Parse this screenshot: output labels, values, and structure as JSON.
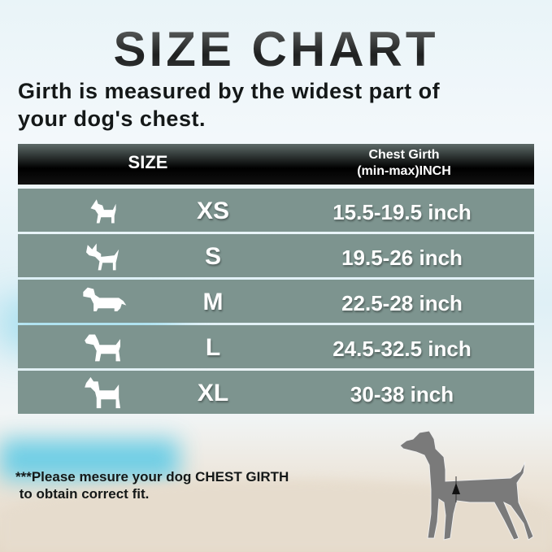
{
  "title": "SIZE CHART",
  "subtitle": [
    "Girth is measured by the widest part of",
    "your dog's chest."
  ],
  "table": {
    "header": {
      "size": "SIZE",
      "girth_line1": "Chest Girth",
      "girth_line2": "(min-max)INCH"
    },
    "rows": [
      {
        "icon": "small-dog-icon",
        "size": "XS",
        "girth": "15.5-19.5 inch"
      },
      {
        "icon": "chihuahua-icon",
        "size": "S",
        "girth": "19.5-26 inch"
      },
      {
        "icon": "dachshund-icon",
        "size": "M",
        "girth": "22.5-28 inch"
      },
      {
        "icon": "medium-dog-icon",
        "size": "L",
        "girth": "24.5-32.5 inch"
      },
      {
        "icon": "great-dane-icon",
        "size": "XL",
        "girth": "30-38 inch"
      }
    ]
  },
  "note": [
    "***Please mesure your dog CHEST GIRTH",
    " to obtain correct fit."
  ],
  "colors": {
    "row": "#7d948f",
    "header": "#000000",
    "text": "#141818"
  }
}
